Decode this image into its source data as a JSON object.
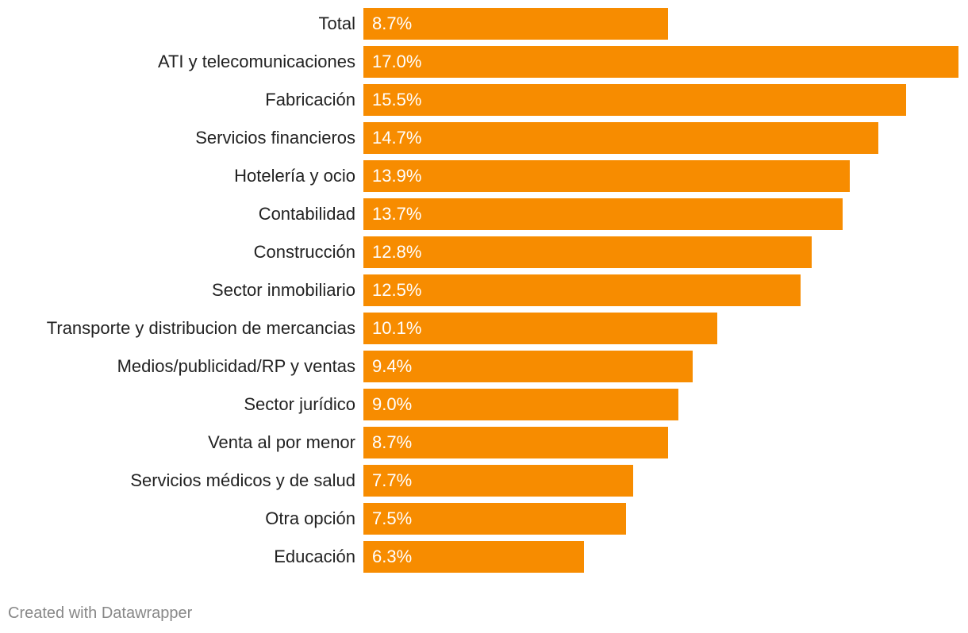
{
  "chart_data": {
    "type": "bar",
    "orientation": "horizontal",
    "categories": [
      "Total",
      "ATI y telecomunicaciones",
      "Fabricación",
      "Servicios financieros",
      "Hotelería y ocio",
      "Contabilidad",
      "Construcción",
      "Sector inmobiliario",
      "Transporte y distribucion de mercancias",
      "Medios/publicidad/RP y ventas",
      "Sector jurídico",
      "Venta al por menor",
      "Servicios médicos y de salud",
      "Otra opción",
      "Educación"
    ],
    "values": [
      8.7,
      17.0,
      15.5,
      14.7,
      13.9,
      13.7,
      12.8,
      12.5,
      10.1,
      9.4,
      9.0,
      8.7,
      7.7,
      7.5,
      6.3
    ],
    "value_labels": [
      "8.7%",
      "17.0%",
      "15.5%",
      "14.7%",
      "13.9%",
      "13.7%",
      "12.8%",
      "12.5%",
      "10.1%",
      "9.4%",
      "9.0%",
      "8.7%",
      "7.7%",
      "7.5%",
      "6.3%"
    ],
    "unit": "%",
    "xlim": [
      0,
      17.0
    ],
    "bar_color": "#f78c00",
    "grid": false,
    "title": "",
    "xlabel": "",
    "ylabel": ""
  },
  "footer": {
    "credit": "Created with Datawrapper"
  }
}
